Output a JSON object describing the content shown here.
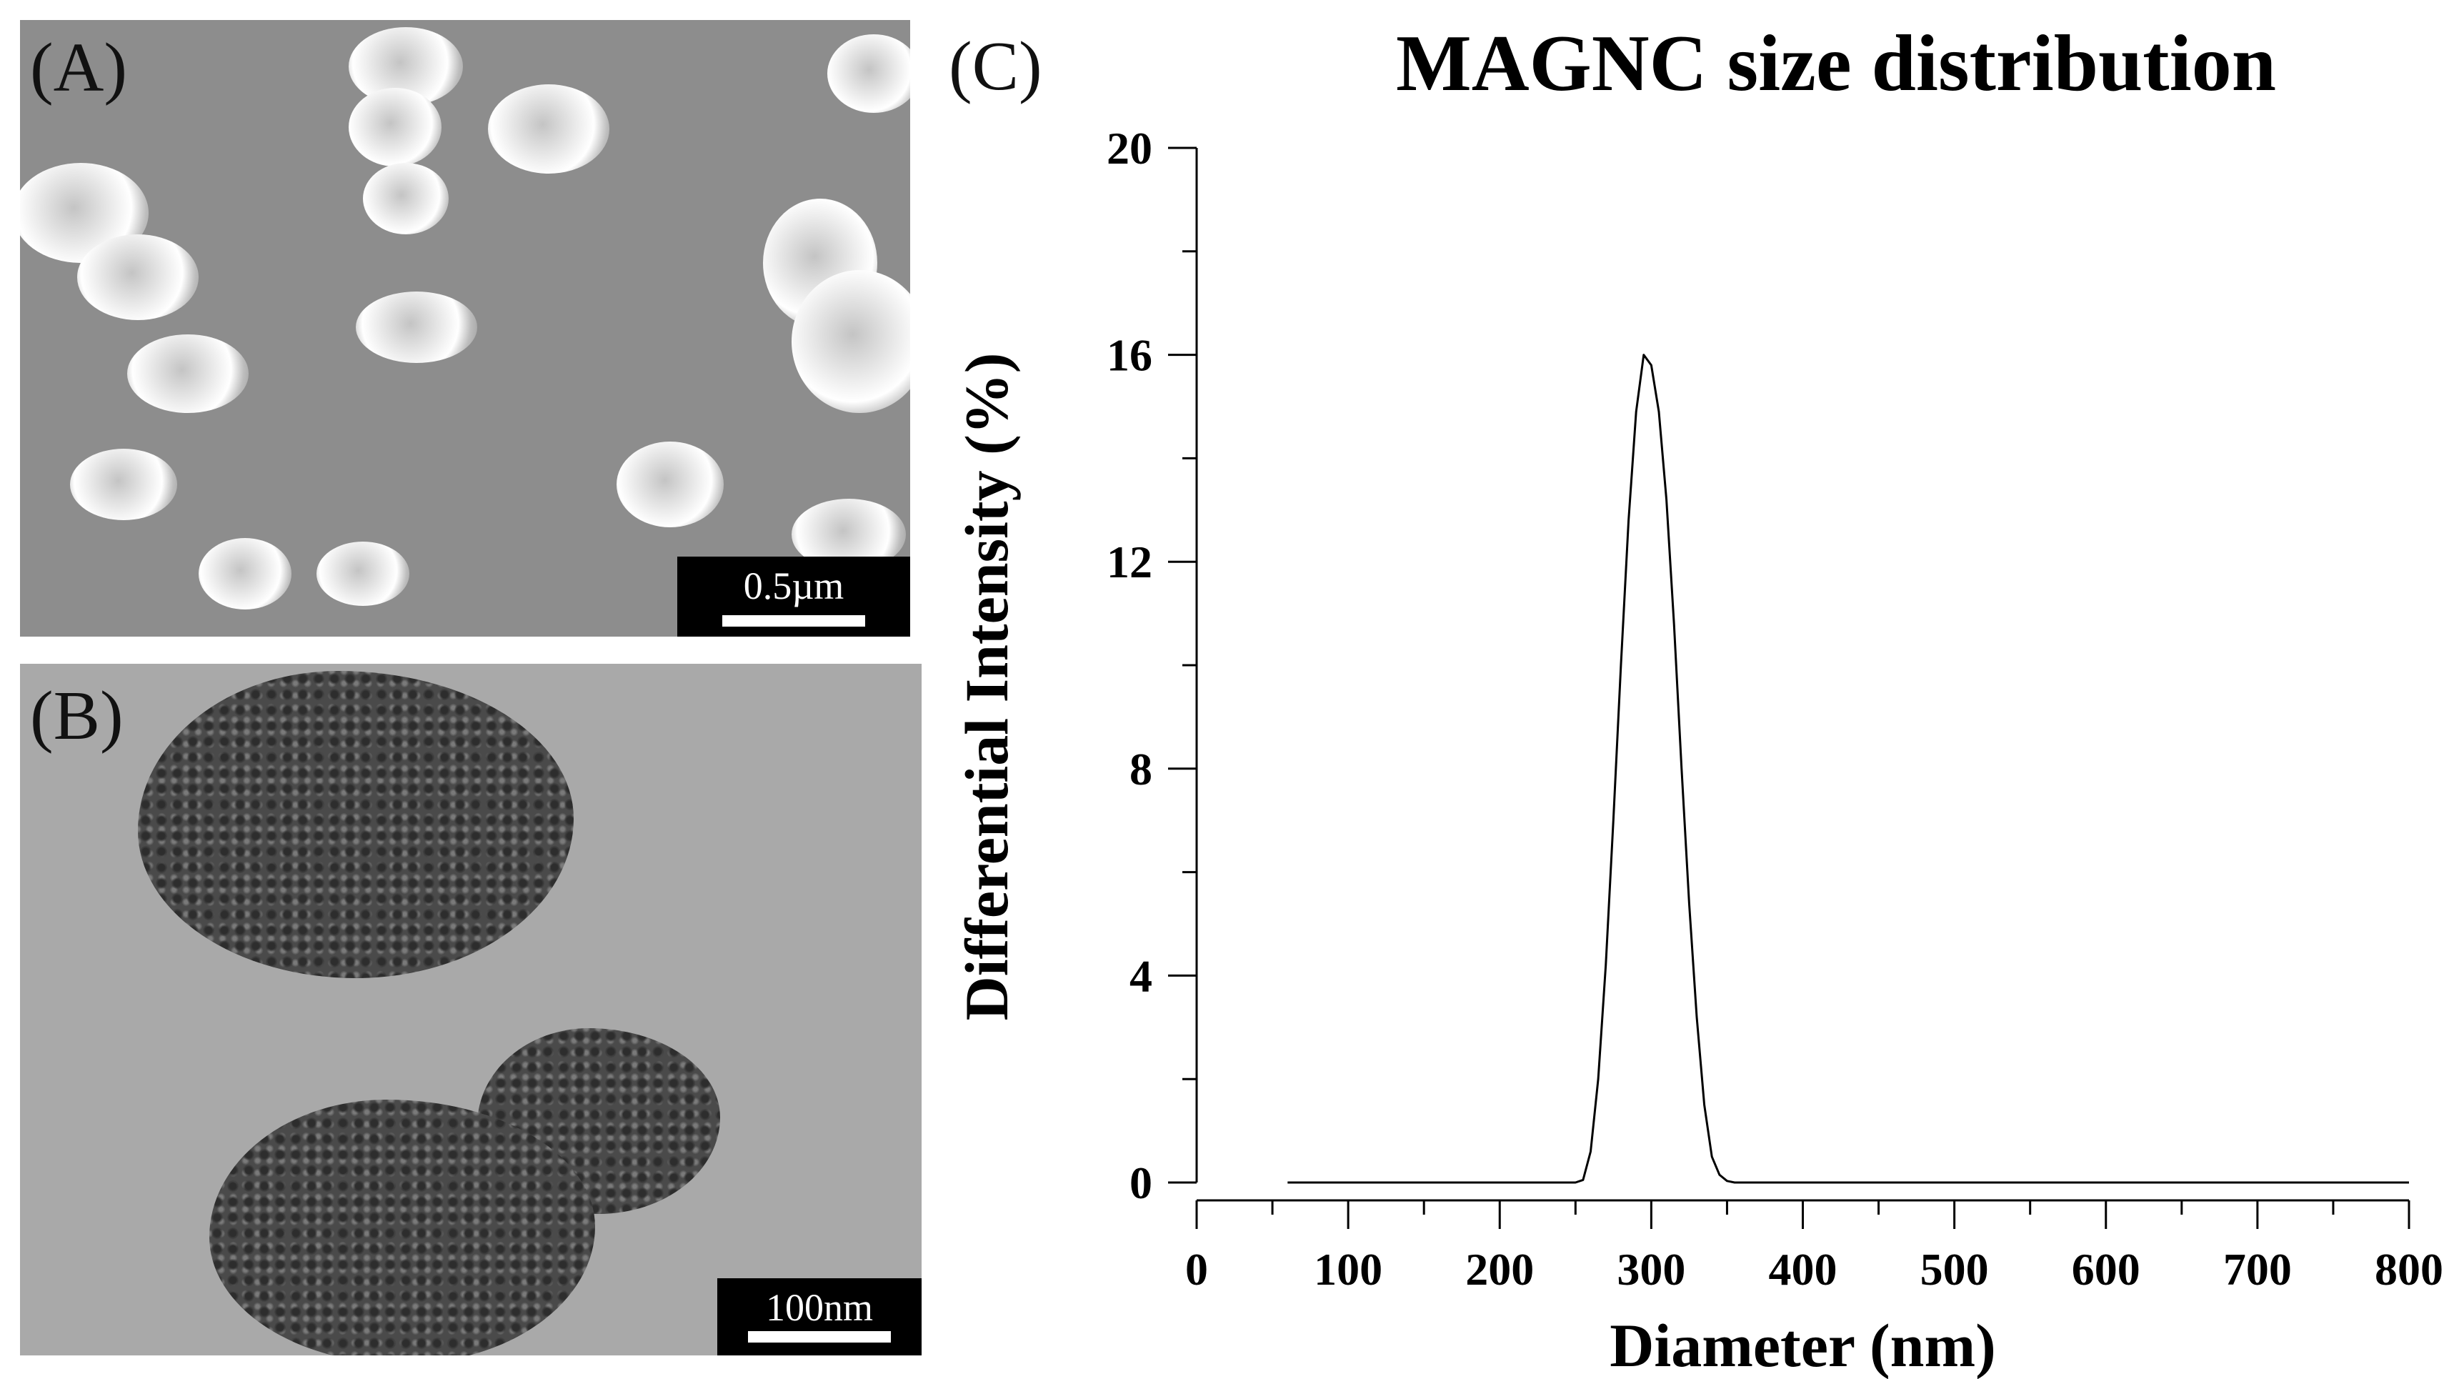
{
  "panels": {
    "a": {
      "label": "(A)",
      "scale_bar": "0.5µm"
    },
    "b": {
      "label": "(B)",
      "scale_bar": "100nm"
    },
    "c": {
      "label": "(C)"
    }
  },
  "chart_data": {
    "type": "line",
    "title": "MAGNC size distribution",
    "xlabel": "Diameter (nm)",
    "ylabel": "Differential Intensity (%)",
    "xlim": [
      0,
      800
    ],
    "ylim": [
      0,
      20
    ],
    "x_ticks": [
      0,
      100,
      200,
      300,
      400,
      500,
      600,
      700,
      800
    ],
    "y_ticks": [
      0,
      4,
      8,
      12,
      16,
      20
    ],
    "grid": false,
    "series": [
      {
        "color": "#000000",
        "x": [
          60,
          100,
          150,
          200,
          250,
          255,
          260,
          265,
          270,
          275,
          280,
          285,
          290,
          295,
          300,
          305,
          310,
          315,
          320,
          325,
          330,
          335,
          340,
          345,
          350,
          355,
          360,
          400,
          500,
          600,
          700,
          800
        ],
        "y": [
          0,
          0,
          0,
          0,
          0,
          0.05,
          0.6,
          2.0,
          4.2,
          7.0,
          10.0,
          12.8,
          14.9,
          16.0,
          15.8,
          14.9,
          13.2,
          10.8,
          8.0,
          5.4,
          3.2,
          1.5,
          0.5,
          0.15,
          0.03,
          0,
          0,
          0,
          0,
          0,
          0,
          0
        ]
      }
    ]
  }
}
